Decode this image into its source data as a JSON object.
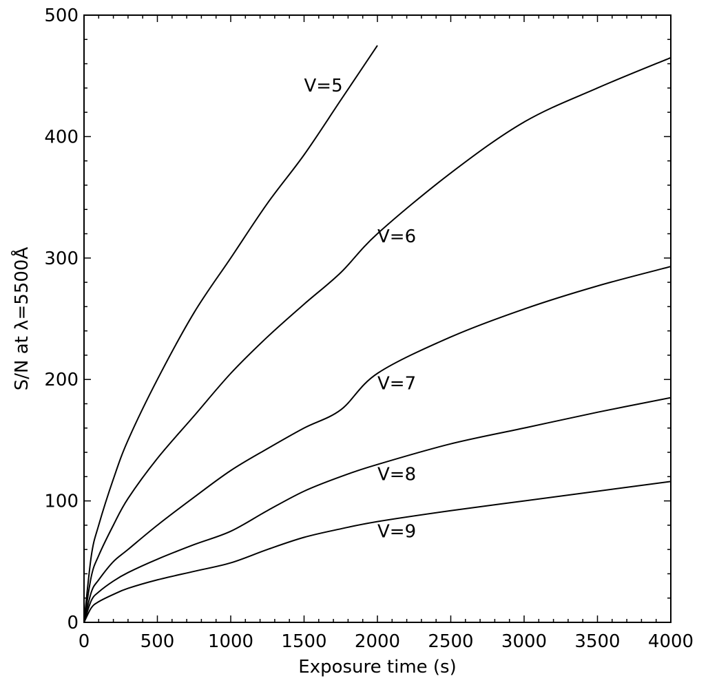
{
  "chart_data": {
    "type": "line",
    "title": "",
    "xlabel": "Exposure time (s)",
    "ylabel": "S/N at λ=5500Å",
    "xlim": [
      0,
      4000
    ],
    "ylim": [
      0,
      500
    ],
    "xticks": [
      "0",
      "500",
      "1000",
      "1500",
      "2000",
      "2500",
      "3000",
      "3500",
      "4000"
    ],
    "yticks": [
      "0",
      "100",
      "200",
      "300",
      "400",
      "500"
    ],
    "grid": false,
    "legend": "none",
    "line_color": "#000000",
    "x": [
      0,
      50,
      100,
      200,
      300,
      500,
      750,
      1000,
      1250,
      1500,
      1750,
      2000,
      2500,
      3000,
      3500,
      4000
    ],
    "series": [
      {
        "name": "V=5",
        "values": [
          0,
          55,
          80,
          118,
          150,
          200,
          255,
          300,
          345,
          385,
          430,
          475,
          null,
          null,
          null,
          null
        ]
      },
      {
        "name": "V=6",
        "values": [
          0,
          38,
          55,
          80,
          102,
          135,
          170,
          205,
          235,
          262,
          288,
          320,
          370,
          412,
          440,
          465
        ]
      },
      {
        "name": "V=7",
        "values": [
          0,
          25,
          35,
          50,
          60,
          80,
          103,
          125,
          143,
          160,
          175,
          205,
          235,
          258,
          277,
          293
        ]
      },
      {
        "name": "V=8",
        "values": [
          0,
          18,
          25,
          34,
          41,
          52,
          64,
          75,
          92,
          108,
          120,
          130,
          147,
          160,
          173,
          185
        ]
      },
      {
        "name": "V=9",
        "values": [
          0,
          12,
          17,
          23,
          28,
          35,
          42,
          49,
          60,
          70,
          77,
          83,
          92,
          100,
          108,
          116
        ]
      }
    ],
    "annotations": [
      {
        "text": "V=5",
        "x": 1500,
        "y": 437
      },
      {
        "text": "V=6",
        "x": 2000,
        "y": 313
      },
      {
        "text": "V=7",
        "x": 2000,
        "y": 192
      },
      {
        "text": "V=8",
        "x": 2000,
        "y": 117
      },
      {
        "text": "V=9",
        "x": 2000,
        "y": 70
      }
    ]
  }
}
